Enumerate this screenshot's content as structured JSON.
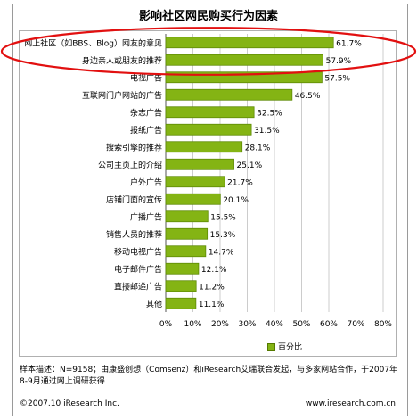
{
  "chart_data": {
    "type": "bar",
    "orientation": "horizontal",
    "title": "影响社区网民购买行为因素",
    "categories": [
      "网上社区（如BBS、Blog）网友的意见",
      "身边亲人或朋友的推荐",
      "电视广告",
      "互联网门户网站的广告",
      "杂志广告",
      "报纸广告",
      "搜索引擎的推荐",
      "公司主页上的介绍",
      "户外广告",
      "店铺门面的宣传",
      "广播广告",
      "销售人员的推荐",
      "移动电视广告",
      "电子邮件广告",
      "直接邮递广告",
      "其他"
    ],
    "series": [
      {
        "name": "百分比",
        "values": [
          61.7,
          57.9,
          57.5,
          46.5,
          32.5,
          31.5,
          28.1,
          25.1,
          21.7,
          20.1,
          15.5,
          15.3,
          14.7,
          12.1,
          11.2,
          11.1
        ]
      }
    ],
    "value_labels": [
      "61.7%",
      "57.9%",
      "57.5%",
      "46.5%",
      "32.5%",
      "31.5%",
      "28.1%",
      "25.1%",
      "21.7%",
      "20.1%",
      "15.5%",
      "15.3%",
      "14.7%",
      "12.1%",
      "11.2%",
      "11.1%"
    ],
    "xlim": [
      0,
      80
    ],
    "xticks": [
      "0%",
      "10%",
      "20%",
      "30%",
      "40%",
      "50%",
      "60%",
      "70%",
      "80%"
    ],
    "grid": true,
    "legend_position": "bottom-right",
    "bar_color": "#84b414",
    "highlight_color": "#e21010"
  },
  "legend_label": "百分比",
  "note": "样本描述：N=9158；由康盛创想（Comsenz）和iResearch艾瑞联合发起，与多家网站合作，于2007年8-9月通过网上调研获得",
  "copyright": "©2007.10 iResearch Inc.",
  "website": "www.iresearch.com.cn"
}
